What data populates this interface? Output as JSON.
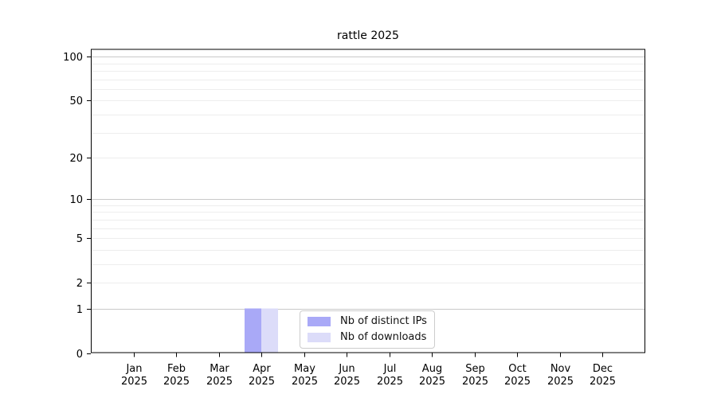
{
  "title": "rattle 2025",
  "chart_data": {
    "type": "bar",
    "title": "rattle 2025",
    "categories": [
      "Jan 2025",
      "Feb 2025",
      "Mar 2025",
      "Apr 2025",
      "May 2025",
      "Jun 2025",
      "Jul 2025",
      "Aug 2025",
      "Sep 2025",
      "Oct 2025",
      "Nov 2025",
      "Dec 2025"
    ],
    "series": [
      {
        "name": "Nb of distinct IPs",
        "color": "#a9a9f7",
        "values": [
          0,
          0,
          0,
          1,
          0,
          0,
          0,
          0,
          0,
          0,
          0,
          0
        ]
      },
      {
        "name": "Nb of downloads",
        "color": "#dcdcf9",
        "values": [
          0,
          0,
          0,
          1,
          0,
          0,
          0,
          0,
          0,
          0,
          0,
          0
        ]
      }
    ],
    "xlabel": "",
    "ylabel": "",
    "yscale": "log1p",
    "ylim": [
      0,
      113
    ],
    "yticks_labeled": [
      0,
      1,
      2,
      5,
      10,
      20,
      50,
      100
    ],
    "gridlines_major": [
      1,
      10,
      100
    ],
    "gridlines_minor": [
      2,
      3,
      4,
      5,
      6,
      7,
      8,
      9,
      20,
      30,
      40,
      50,
      60,
      70,
      80,
      90
    ],
    "grid": true,
    "legend_position": "lower center",
    "colors": {
      "axis": "#000000",
      "tick_text": "#000000",
      "grid_major": "#c9c9c9",
      "grid_minor": "#ededed",
      "bar_distinct_ips": "#a9a9f7",
      "bar_downloads": "#dcdcf9",
      "legend_border": "#cccccc",
      "background": "#ffffff"
    }
  }
}
